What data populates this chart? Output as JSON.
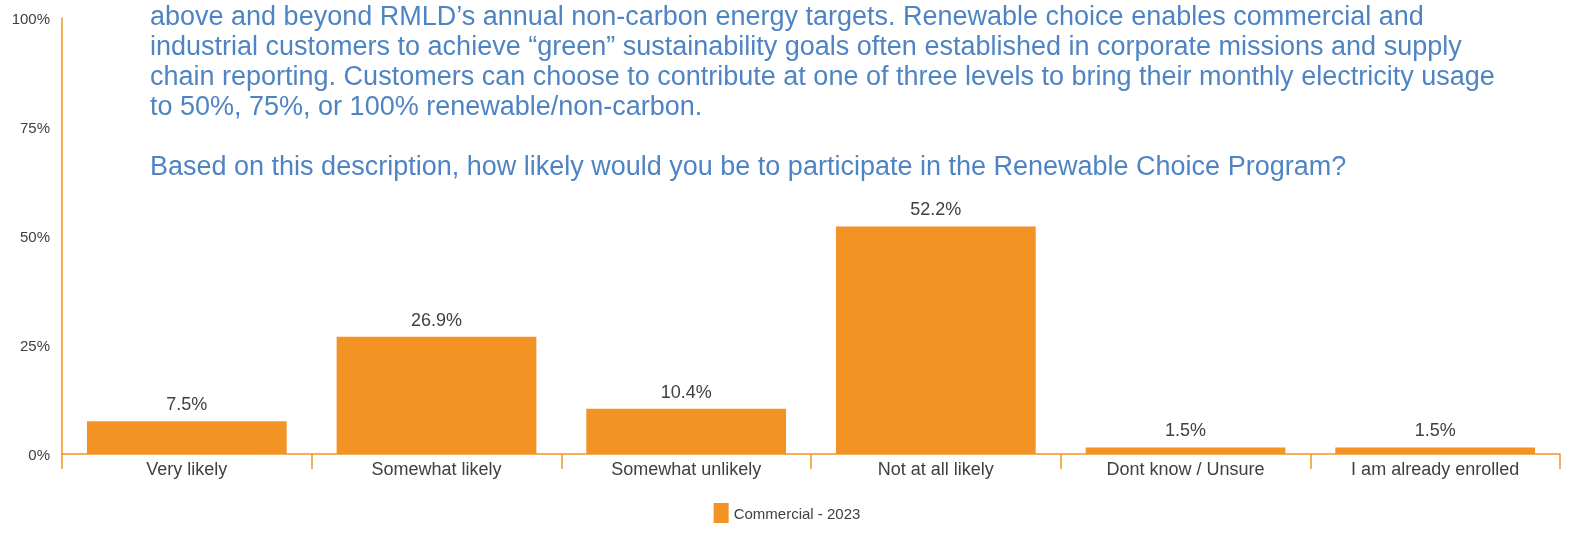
{
  "chart_data": {
    "type": "bar",
    "categories": [
      "Very likely",
      "Somewhat likely",
      "Somewhat unlikely",
      "Not at all likely",
      "Dont know / Unsure",
      "I am already enrolled"
    ],
    "series": [
      {
        "name": "Commercial - 2023",
        "color": "#f29323",
        "values": [
          7.5,
          26.9,
          10.4,
          52.2,
          1.5,
          1.5
        ],
        "value_labels": [
          "7.5%",
          "26.9%",
          "10.4%",
          "52.2%",
          "1.5%",
          "1.5%"
        ]
      }
    ],
    "ylim": [
      0,
      100
    ],
    "yticks": [
      {
        "value": 0,
        "label": "0%"
      },
      {
        "value": 25,
        "label": "25%"
      },
      {
        "value": 50,
        "label": "50%"
      },
      {
        "value": 75,
        "label": "75%"
      },
      {
        "value": 100,
        "label": "100%"
      }
    ],
    "annotations": [
      "above and beyond RMLD’s annual non-carbon energy targets. Renewable choice enables commercial and industrial customers to achieve “green” sustainability goals often established in corporate missions and supply chain reporting. Customers can choose to contribute at one of three levels to bring their monthly electricity usage to 50%, 75%, or 100% renewable/non-carbon.",
      "Based on this description, how likely would you be to participate in the Renewable Choice Program?"
    ],
    "legend": "bottom"
  }
}
